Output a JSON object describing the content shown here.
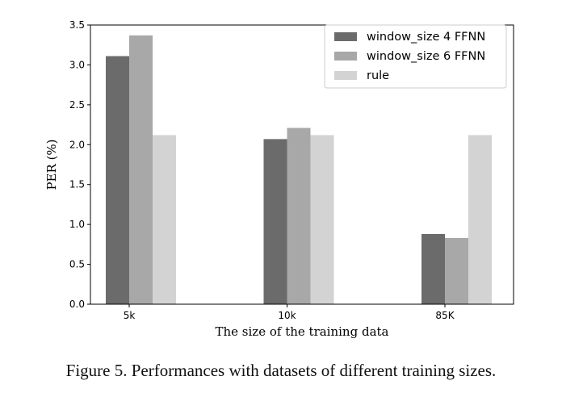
{
  "chart_data": {
    "type": "bar",
    "categories": [
      "5k",
      "10k",
      "85K"
    ],
    "series": [
      {
        "name": "window_size 4 FFNN",
        "values": [
          3.11,
          2.07,
          0.88
        ],
        "color": "#6b6b6b"
      },
      {
        "name": "window_size 6 FFNN",
        "values": [
          3.37,
          2.21,
          0.83
        ],
        "color": "#a8a8a8"
      },
      {
        "name": "rule",
        "values": [
          2.12,
          2.12,
          2.12
        ],
        "color": "#d3d3d3"
      }
    ],
    "yticks": [
      "0.0",
      "0.5",
      "1.0",
      "1.5",
      "2.0",
      "2.5",
      "3.0",
      "3.5"
    ],
    "xlabel": "The size of the training data",
    "ylabel": "PER (%)",
    "ylim": [
      0,
      3.5
    ],
    "legend_position": "top-right",
    "grid": false
  },
  "caption": "Figure 5. Performances with datasets of different training sizes."
}
